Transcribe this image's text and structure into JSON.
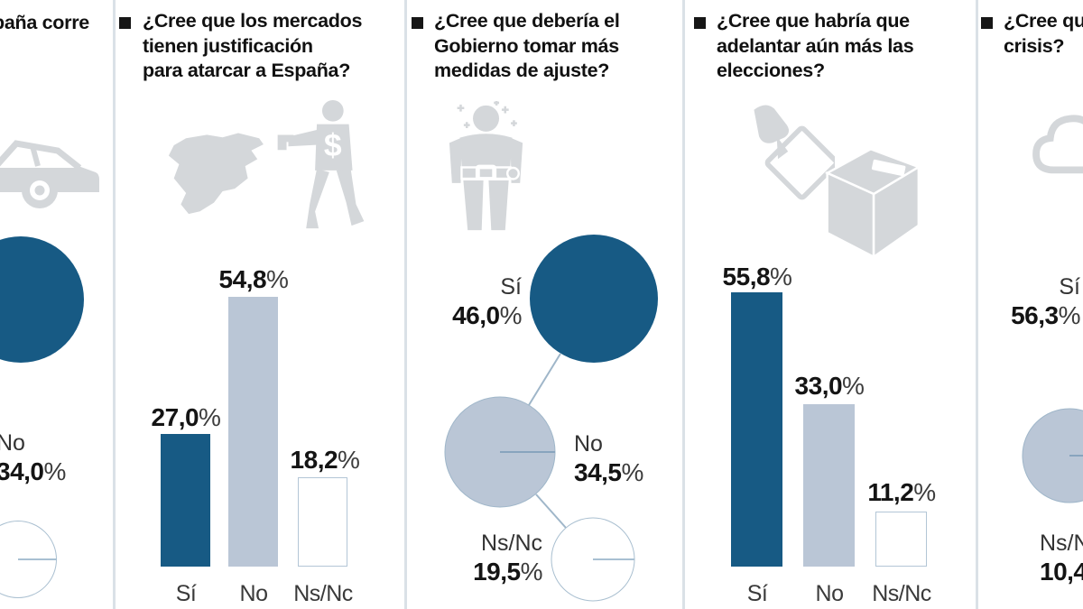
{
  "colors": {
    "dark_blue": "#175a84",
    "light_blue": "#bac6d6",
    "white_bar_border": "#b3c6d6",
    "icon_gray": "#d4d7da",
    "separator": "#dae1e7",
    "text": "#141414"
  },
  "panels": [
    {
      "name": "espana-corre",
      "question_lines": [
        "paña corre"
      ],
      "icons": [
        "car-icon"
      ],
      "items": [
        {
          "label": "No",
          "value": "34,0",
          "unit": "%"
        }
      ]
    },
    {
      "name": "mercados-atacar-espana",
      "question_lines": [
        "¿Cree que los mercados",
        "tienen justificación",
        "para atarcar a  España?"
      ],
      "icons": [
        "spain-map-icon",
        "armed-robber-dollar-icon"
      ],
      "items": [
        {
          "label": "Sí",
          "value": "27,0",
          "unit": "%"
        },
        {
          "label": "No",
          "value": "54,8",
          "unit": "%"
        },
        {
          "label": "Ns/Nc",
          "value": "18,2",
          "unit": "%"
        }
      ]
    },
    {
      "name": "gobierno-medidas-ajuste",
      "question_lines": [
        "¿Cree que debería el",
        "Gobierno tomar más",
        "medidas de ajuste?"
      ],
      "icons": [
        "belt-tightening-person-icon"
      ],
      "items": [
        {
          "label": "Sí",
          "value": "46,0",
          "unit": "%"
        },
        {
          "label": "No",
          "value": "34,5",
          "unit": "%"
        },
        {
          "label": "Ns/Nc",
          "value": "19,5",
          "unit": "%"
        }
      ]
    },
    {
      "name": "adelantar-elecciones",
      "question_lines": [
        "¿Cree que habría que",
        "adelantar aún más las",
        "elecciones?"
      ],
      "icons": [
        "ballot-hand-icon",
        "ballot-box-icon"
      ],
      "items": [
        {
          "label": "Sí",
          "value": "55,8",
          "unit": "%"
        },
        {
          "label": "No",
          "value": "33,0",
          "unit": "%"
        },
        {
          "label": "Ns/Nc",
          "value": "11,2",
          "unit": "%"
        }
      ]
    },
    {
      "name": "crisis",
      "question_lines": [
        "¿Cree qu",
        "crisis?"
      ],
      "icons": [
        "storm-cloud-icon"
      ],
      "items": [
        {
          "label": "Sí",
          "value": "56,3",
          "unit": "%"
        },
        {
          "label": "Ns/Nc",
          "value": "10,4",
          "unit": "%"
        }
      ]
    }
  ],
  "chart_data": [
    {
      "type": "area-circles",
      "title_fragment": "paña corre",
      "categories": [
        "No"
      ],
      "values": [
        34.0
      ],
      "unit": "%"
    },
    {
      "type": "bar",
      "title": "¿Cree que los mercados tienen justificación para atarcar a España?",
      "categories": [
        "Sí",
        "No",
        "Ns/Nc"
      ],
      "values": [
        27.0,
        54.8,
        18.2
      ],
      "unit": "%",
      "ylim": [
        0,
        60
      ],
      "bar_colors": [
        "#175a84",
        "#bac6d6",
        "#ffffff"
      ]
    },
    {
      "type": "area-circles",
      "title": "¿Cree que debería el Gobierno tomar más medidas de ajuste?",
      "categories": [
        "Sí",
        "No",
        "Ns/Nc"
      ],
      "values": [
        46.0,
        34.5,
        19.5
      ],
      "unit": "%",
      "circle_colors": [
        "#175a84",
        "#bac6d6",
        "#ffffff"
      ]
    },
    {
      "type": "bar",
      "title": "¿Cree que habría que adelantar aún más las elecciones?",
      "categories": [
        "Sí",
        "No",
        "Ns/Nc"
      ],
      "values": [
        55.8,
        33.0,
        11.2
      ],
      "unit": "%",
      "ylim": [
        0,
        60
      ],
      "bar_colors": [
        "#175a84",
        "#bac6d6",
        "#ffffff"
      ]
    },
    {
      "type": "area-circles",
      "title_fragment": "¿Cree qu … crisis?",
      "categories": [
        "Sí",
        "Ns/Nc"
      ],
      "values": [
        56.3,
        10.4
      ],
      "unit": "%"
    }
  ]
}
